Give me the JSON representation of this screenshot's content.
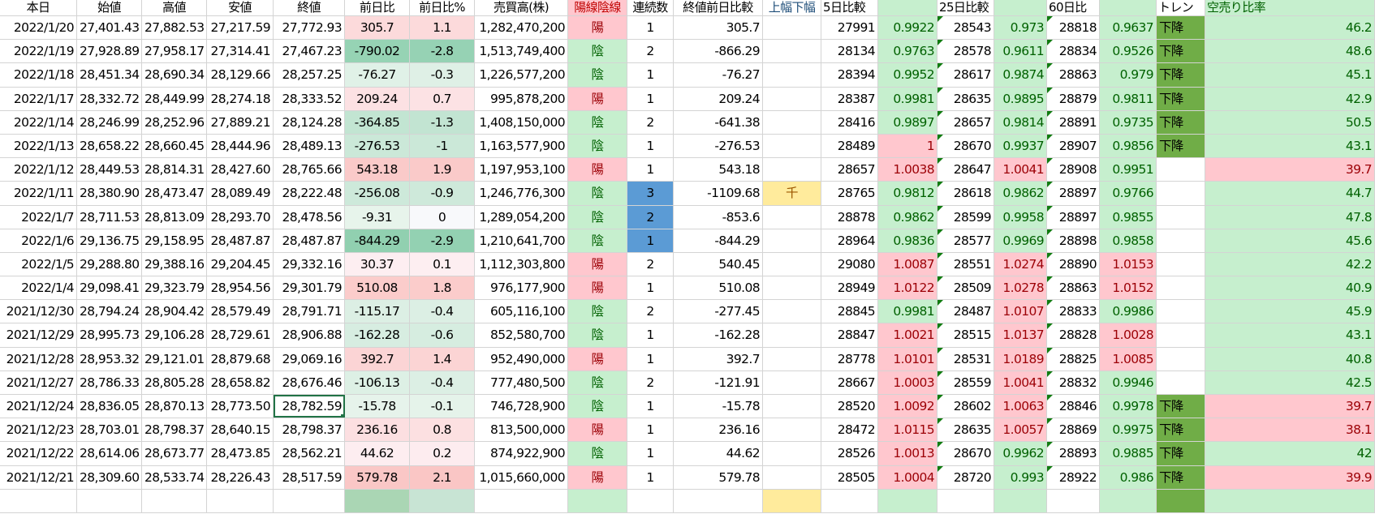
{
  "headers": [
    "本日",
    "始値",
    "高値",
    "安値",
    "終値",
    "前日比",
    "前日比%",
    "売買高(株)",
    "陽線陰線",
    "連続数",
    "終値前日比較",
    "上幅下幅",
    "5日比較",
    "",
    "25日比較",
    "",
    "60日比",
    "",
    "トレン",
    "空売り比率"
  ],
  "colors": {
    "yang_bg": "#ffc7ce",
    "yang_text": "#9c0006",
    "yin_bg": "#c6efce",
    "yin_text": "#006100",
    "streak_highlight": "#5b9bd5",
    "warning_bg": "#ffeb9c",
    "trend_bg": "#70ad47",
    "selection": "#217346"
  },
  "selected_cell": {
    "row_date": "2021/12/24",
    "column": "終値"
  },
  "rows": [
    [
      "2022/1/20",
      "27,401.43",
      "27,882.53",
      "27,217.59",
      "27,772.93",
      "305.7",
      "1.1",
      "1,282,470,200",
      "陽",
      "1",
      "305.7",
      "",
      "27991",
      "0.9922",
      "28543",
      "0.973",
      "28818",
      "0.9637",
      "下降",
      "46.2"
    ],
    [
      "2022/1/19",
      "27,928.89",
      "27,958.17",
      "27,314.41",
      "27,467.23",
      "-790.02",
      "-2.8",
      "1,513,749,400",
      "陰",
      "2",
      "-866.29",
      "",
      "28134",
      "0.9763",
      "28578",
      "0.9611",
      "28834",
      "0.9526",
      "下降",
      "48.6"
    ],
    [
      "2022/1/18",
      "28,451.34",
      "28,690.34",
      "28,129.66",
      "28,257.25",
      "-76.27",
      "-0.3",
      "1,226,577,200",
      "陰",
      "1",
      "-76.27",
      "",
      "28394",
      "0.9952",
      "28617",
      "0.9874",
      "28863",
      "0.979",
      "下降",
      "45.1"
    ],
    [
      "2022/1/17",
      "28,332.72",
      "28,449.99",
      "28,274.18",
      "28,333.52",
      "209.24",
      "0.7",
      "995,878,200",
      "陽",
      "1",
      "209.24",
      "",
      "28387",
      "0.9981",
      "28635",
      "0.9895",
      "28879",
      "0.9811",
      "下降",
      "42.9"
    ],
    [
      "2022/1/14",
      "28,246.99",
      "28,252.96",
      "27,889.21",
      "28,124.28",
      "-364.85",
      "-1.3",
      "1,408,150,000",
      "陰",
      "2",
      "-641.38",
      "",
      "28416",
      "0.9897",
      "28657",
      "0.9814",
      "28891",
      "0.9735",
      "下降",
      "50.5"
    ],
    [
      "2022/1/13",
      "28,658.22",
      "28,660.45",
      "28,444.96",
      "28,489.13",
      "-276.53",
      "-1",
      "1,163,577,900",
      "陰",
      "1",
      "-276.53",
      "",
      "28489",
      "1",
      "28670",
      "0.9937",
      "28907",
      "0.9856",
      "下降",
      "43.1"
    ],
    [
      "2022/1/12",
      "28,449.53",
      "28,814.31",
      "28,427.60",
      "28,765.66",
      "543.18",
      "1.9",
      "1,197,953,100",
      "陽",
      "1",
      "543.18",
      "",
      "28657",
      "1.0038",
      "28647",
      "1.0041",
      "28908",
      "0.9951",
      "",
      "39.7"
    ],
    [
      "2022/1/11",
      "28,380.90",
      "28,473.47",
      "28,089.49",
      "28,222.48",
      "-256.08",
      "-0.9",
      "1,246,776,300",
      "陰",
      "3",
      "-1109.68",
      "千",
      "28765",
      "0.9812",
      "28618",
      "0.9862",
      "28897",
      "0.9766",
      "",
      "44.7"
    ],
    [
      "2022/1/7",
      "28,711.53",
      "28,813.09",
      "28,293.70",
      "28,478.56",
      "-9.31",
      "0",
      "1,289,054,200",
      "陰",
      "2",
      "-853.6",
      "",
      "28878",
      "0.9862",
      "28599",
      "0.9958",
      "28897",
      "0.9855",
      "",
      "47.8"
    ],
    [
      "2022/1/6",
      "29,136.75",
      "29,158.95",
      "28,487.87",
      "28,487.87",
      "-844.29",
      "-2.9",
      "1,210,641,700",
      "陰",
      "1",
      "-844.29",
      "",
      "28964",
      "0.9836",
      "28577",
      "0.9969",
      "28898",
      "0.9858",
      "",
      "45.6"
    ],
    [
      "2022/1/5",
      "29,288.80",
      "29,388.16",
      "29,204.45",
      "29,332.16",
      "30.37",
      "0.1",
      "1,112,303,800",
      "陽",
      "2",
      "540.45",
      "",
      "29080",
      "1.0087",
      "28551",
      "1.0274",
      "28890",
      "1.0153",
      "",
      "42.2"
    ],
    [
      "2022/1/4",
      "29,098.41",
      "29,323.79",
      "28,954.56",
      "29,301.79",
      "510.08",
      "1.8",
      "976,177,900",
      "陽",
      "1",
      "510.08",
      "",
      "28949",
      "1.0122",
      "28509",
      "1.0278",
      "28863",
      "1.0152",
      "",
      "40.9"
    ],
    [
      "2021/12/30",
      "28,794.24",
      "28,904.42",
      "28,579.49",
      "28,791.71",
      "-115.17",
      "-0.4",
      "605,116,100",
      "陰",
      "2",
      "-277.45",
      "",
      "28845",
      "0.9981",
      "28487",
      "1.0107",
      "28833",
      "0.9986",
      "",
      "45.9"
    ],
    [
      "2021/12/29",
      "28,995.73",
      "29,106.28",
      "28,729.61",
      "28,906.88",
      "-162.28",
      "-0.6",
      "852,580,700",
      "陰",
      "1",
      "-162.28",
      "",
      "28847",
      "1.0021",
      "28515",
      "1.0137",
      "28828",
      "1.0028",
      "",
      "43.1"
    ],
    [
      "2021/12/28",
      "28,953.32",
      "29,121.01",
      "28,879.68",
      "29,069.16",
      "392.7",
      "1.4",
      "952,490,000",
      "陽",
      "1",
      "392.7",
      "",
      "28778",
      "1.0101",
      "28531",
      "1.0189",
      "28825",
      "1.0085",
      "",
      "40.8"
    ],
    [
      "2021/12/27",
      "28,786.33",
      "28,805.28",
      "28,658.82",
      "28,676.46",
      "-106.13",
      "-0.4",
      "777,480,500",
      "陰",
      "2",
      "-121.91",
      "",
      "28667",
      "1.0003",
      "28559",
      "1.0041",
      "28832",
      "0.9946",
      "",
      "42.5"
    ],
    [
      "2021/12/24",
      "28,836.05",
      "28,870.13",
      "28,773.50",
      "28,782.59",
      "-15.78",
      "-0.1",
      "746,728,900",
      "陰",
      "1",
      "-15.78",
      "",
      "28520",
      "1.0092",
      "28602",
      "1.0063",
      "28846",
      "0.9978",
      "下降",
      "39.7"
    ],
    [
      "2021/12/23",
      "28,703.01",
      "28,798.37",
      "28,640.15",
      "28,798.37",
      "236.16",
      "0.8",
      "813,500,000",
      "陽",
      "1",
      "236.16",
      "",
      "28472",
      "1.0115",
      "28635",
      "1.0057",
      "28869",
      "0.9975",
      "下降",
      "38.1"
    ],
    [
      "2021/12/22",
      "28,614.06",
      "28,673.77",
      "28,473.85",
      "28,562.21",
      "44.62",
      "0.2",
      "874,922,900",
      "陰",
      "1",
      "44.62",
      "",
      "28526",
      "1.0013",
      "28670",
      "0.9962",
      "28893",
      "0.9885",
      "下降",
      "42"
    ],
    [
      "2021/12/21",
      "28,309.60",
      "28,533.74",
      "28,226.43",
      "28,517.59",
      "579.78",
      "2.1",
      "1,015,660,000",
      "陽",
      "1",
      "579.78",
      "",
      "28505",
      "1.0004",
      "28720",
      "0.993",
      "28922",
      "0.986",
      "下降",
      "39.9"
    ]
  ]
}
